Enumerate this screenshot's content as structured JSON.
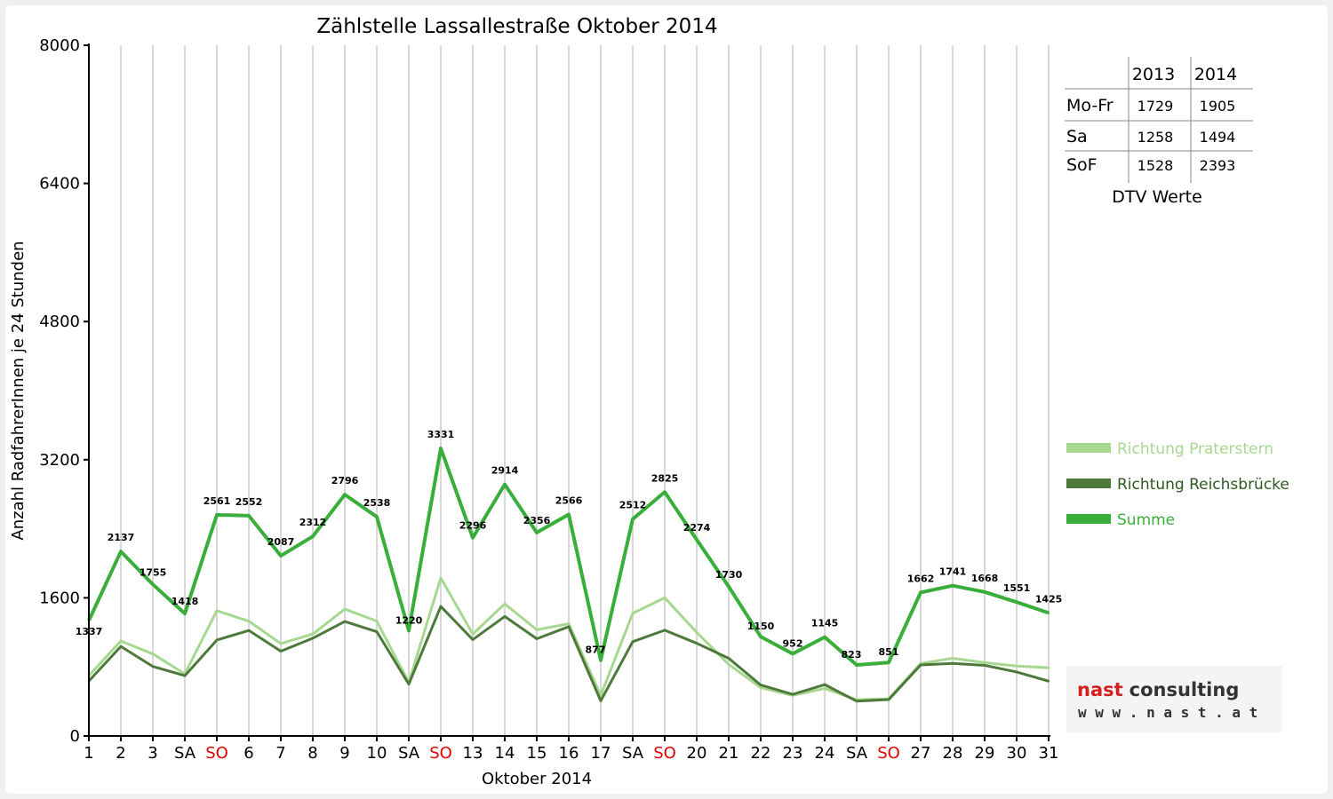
{
  "chart_data": {
    "type": "line",
    "title": "Zählstelle Lassallestraße Oktober 2014",
    "xlabel": "Oktober 2014",
    "ylabel": "Anzahl RadfahrerInnen je 24 Stunden",
    "ylim": [
      0,
      8000
    ],
    "yticks": [
      "0",
      "1600",
      "3200",
      "4800",
      "6400",
      "8000"
    ],
    "categories": [
      "1",
      "2",
      "3",
      "SA",
      "SO",
      "6",
      "7",
      "8",
      "9",
      "10",
      "SA",
      "SO",
      "13",
      "14",
      "15",
      "16",
      "17",
      "SA",
      "SO",
      "20",
      "21",
      "22",
      "23",
      "24",
      "SA",
      "SO",
      "27",
      "28",
      "29",
      "30",
      "31"
    ],
    "category_colors": [
      "#000",
      "#000",
      "#000",
      "#000",
      "#e00000",
      "#000",
      "#000",
      "#000",
      "#000",
      "#000",
      "#000",
      "#e00000",
      "#000",
      "#000",
      "#000",
      "#000",
      "#000",
      "#000",
      "#e00000",
      "#000",
      "#000",
      "#000",
      "#000",
      "#000",
      "#000",
      "#e00000",
      "#000",
      "#000",
      "#000",
      "#000",
      "#000"
    ],
    "grid": true,
    "legend_position": "right",
    "series": [
      {
        "name": "Richtung Praterstern",
        "color": "#a6d98f",
        "values": [
          700,
          1100,
          950,
          720,
          1450,
          1330,
          1070,
          1180,
          1470,
          1330,
          620,
          1830,
          1180,
          1530,
          1230,
          1300,
          470,
          1420,
          1600,
          1200,
          830,
          560,
          470,
          550,
          420,
          430,
          840,
          900,
          850,
          810,
          790
        ]
      },
      {
        "name": "Richtung Reichsbrücke",
        "color": "#4d7a3a",
        "values": [
          637,
          1037,
          805,
          698,
          1111,
          1222,
          982,
          1132,
          1326,
          1208,
          600,
          1501,
          1116,
          1384,
          1126,
          1266,
          407,
          1092,
          1225,
          1074,
          900,
          590,
          482,
          595,
          403,
          421,
          822,
          841,
          818,
          741,
          635
        ]
      },
      {
        "name": "Summe",
        "color": "#3aae3a",
        "values": [
          1337,
          2137,
          1755,
          1418,
          2561,
          2552,
          2087,
          2312,
          2796,
          2538,
          1220,
          3331,
          2296,
          2914,
          2356,
          2566,
          877,
          2512,
          2825,
          2274,
          1730,
          1150,
          952,
          1145,
          823,
          851,
          1662,
          1741,
          1668,
          1551,
          1425
        ]
      }
    ],
    "data_labels": [
      "1337",
      "2137",
      "1755",
      "1418",
      "2561",
      "2552",
      "2087",
      "2312",
      "2796",
      "2538",
      "1220",
      "3331",
      "2296",
      "2914",
      "2356",
      "2566",
      "877",
      "2512",
      "2825",
      "2274",
      "1730",
      "1150",
      "952",
      "1145",
      "823",
      "851",
      "1662",
      "1741",
      "1668",
      "1551",
      "1425"
    ]
  },
  "dtv_table": {
    "caption": "DTV Werte",
    "headers": [
      "",
      "2013",
      "2014"
    ],
    "rows": [
      {
        "label": "Mo-Fr",
        "v2013": "1729",
        "v2014": "1905"
      },
      {
        "label": "Sa",
        "v2013": "1258",
        "v2014": "1494"
      },
      {
        "label": "SoF",
        "v2013": "1528",
        "v2014": "2393"
      }
    ]
  },
  "logo": {
    "name_part1": "nast",
    "name_part2": "consulting",
    "url": "w w w . n a s t . a t",
    "color_nast": "#d42020",
    "color_consulting": "#333333"
  }
}
